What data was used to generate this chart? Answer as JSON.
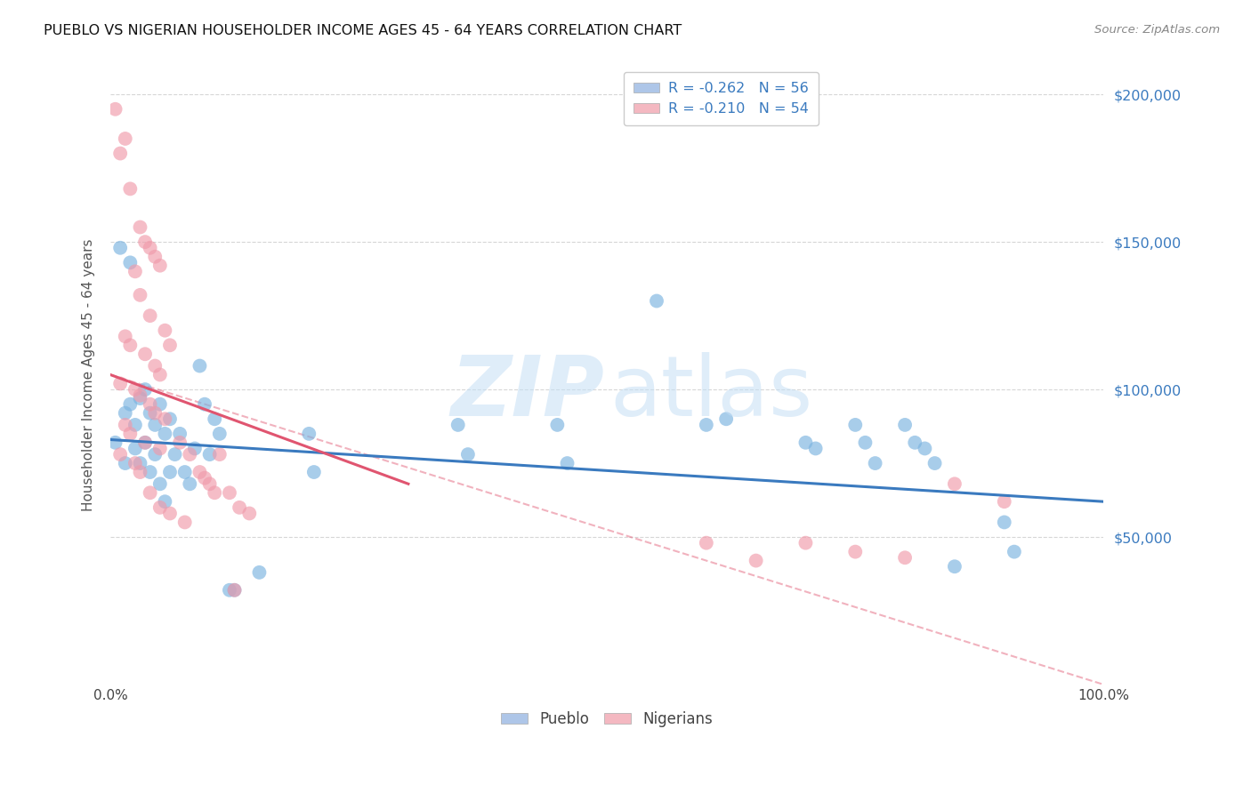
{
  "title": "PUEBLO VS NIGERIAN HOUSEHOLDER INCOME AGES 45 - 64 YEARS CORRELATION CHART",
  "source": "Source: ZipAtlas.com",
  "ylabel": "Householder Income Ages 45 - 64 years",
  "ytick_values": [
    50000,
    100000,
    150000,
    200000
  ],
  "background_color": "#ffffff",
  "grid_color": "#cccccc",
  "watermark_zip": "ZIP",
  "watermark_atlas": "atlas",
  "pueblo_color": "#7ab3e0",
  "nigerian_color": "#f09aaa",
  "pueblo_R": -0.262,
  "pueblo_N": 56,
  "nigerian_R": -0.21,
  "nigerian_N": 54,
  "legend_blue_color": "#aec6e8",
  "legend_pink_color": "#f4b8c1",
  "blue_trend_color": "#3a7abf",
  "pink_trend_color": "#e05570",
  "blue_label_color": "#3a7abf",
  "pueblo_dots_x": [
    0.5,
    1.0,
    1.5,
    1.5,
    2.0,
    2.0,
    2.5,
    2.5,
    3.0,
    3.0,
    3.5,
    3.5,
    4.0,
    4.0,
    4.5,
    4.5,
    5.0,
    5.0,
    5.5,
    5.5,
    6.0,
    6.0,
    6.5,
    7.0,
    7.5,
    8.0,
    8.5,
    9.0,
    9.5,
    10.0,
    10.5,
    11.0,
    12.0,
    12.5,
    15.0,
    20.0,
    20.5,
    35.0,
    36.0,
    45.0,
    46.0,
    55.0,
    60.0,
    62.0,
    70.0,
    71.0,
    75.0,
    76.0,
    77.0,
    80.0,
    81.0,
    82.0,
    83.0,
    85.0,
    90.0,
    91.0
  ],
  "pueblo_dots_y": [
    82000,
    148000,
    92000,
    75000,
    143000,
    95000,
    88000,
    80000,
    97000,
    75000,
    100000,
    82000,
    92000,
    72000,
    88000,
    78000,
    95000,
    68000,
    85000,
    62000,
    90000,
    72000,
    78000,
    85000,
    72000,
    68000,
    80000,
    108000,
    95000,
    78000,
    90000,
    85000,
    32000,
    32000,
    38000,
    85000,
    72000,
    88000,
    78000,
    88000,
    75000,
    130000,
    88000,
    90000,
    82000,
    80000,
    88000,
    82000,
    75000,
    88000,
    82000,
    80000,
    75000,
    40000,
    55000,
    45000
  ],
  "nigerian_dots_x": [
    0.5,
    1.0,
    1.5,
    2.0,
    3.0,
    3.5,
    4.0,
    4.5,
    5.0,
    2.5,
    3.0,
    4.0,
    5.5,
    1.5,
    2.0,
    3.5,
    4.5,
    5.0,
    1.0,
    2.5,
    3.0,
    4.0,
    4.5,
    5.5,
    1.5,
    2.0,
    3.5,
    5.0,
    1.0,
    2.5,
    3.0,
    6.0,
    7.0,
    8.0,
    9.0,
    10.0,
    11.0,
    12.5,
    60.0,
    65.0,
    70.0,
    75.0,
    80.0,
    85.0,
    90.0,
    4.0,
    5.0,
    6.0,
    7.5,
    9.5,
    10.5,
    12.0,
    13.0,
    14.0
  ],
  "nigerian_dots_y": [
    195000,
    180000,
    185000,
    168000,
    155000,
    150000,
    148000,
    145000,
    142000,
    140000,
    132000,
    125000,
    120000,
    118000,
    115000,
    112000,
    108000,
    105000,
    102000,
    100000,
    98000,
    95000,
    92000,
    90000,
    88000,
    85000,
    82000,
    80000,
    78000,
    75000,
    72000,
    115000,
    82000,
    78000,
    72000,
    68000,
    78000,
    32000,
    48000,
    42000,
    48000,
    45000,
    43000,
    68000,
    62000,
    65000,
    60000,
    58000,
    55000,
    70000,
    65000,
    65000,
    60000,
    58000
  ],
  "pueblo_line": [
    0,
    83000,
    100,
    62000
  ],
  "nigerian_line": [
    0,
    105000,
    30,
    68000
  ],
  "nigerian_dashed": [
    0,
    105000,
    100,
    0
  ],
  "xmin": 0,
  "xmax": 100,
  "ymin": 0,
  "ymax": 210000
}
